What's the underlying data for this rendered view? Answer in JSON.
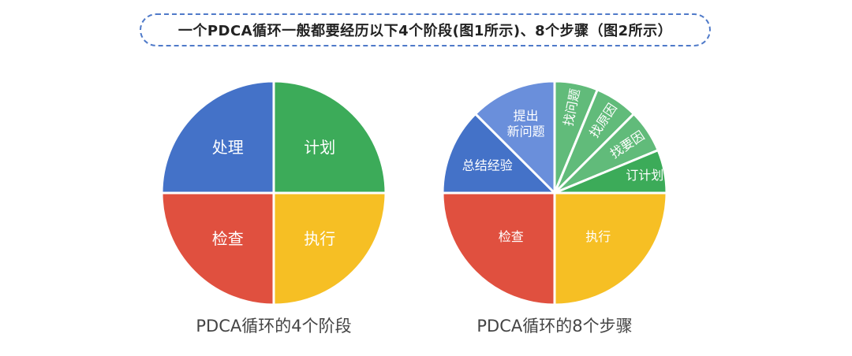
{
  "title": "一个PDCA循环一般都要经历以下4个阶段(图1所示)、8个步骤（图2所示）",
  "colors": {
    "blue": "#4472c8",
    "green": "#3cab59",
    "red": "#e0503f",
    "yellow": "#f6bf24",
    "light_blue": "#6a8fdb",
    "light_green": "#61bb7a"
  },
  "chart_data": [
    {
      "type": "pie",
      "caption": "PDCA循环的4个阶段",
      "slices": [
        {
          "label": "计划",
          "value": 25,
          "color": "#3cab59"
        },
        {
          "label": "执行",
          "value": 25,
          "color": "#f6bf24"
        },
        {
          "label": "检查",
          "value": 25,
          "color": "#e0503f"
        },
        {
          "label": "处理",
          "value": 25,
          "color": "#4472c8"
        }
      ]
    },
    {
      "type": "pie",
      "caption": "PDCA循环的8个步骤",
      "slices": [
        {
          "label": "找问题",
          "value": 6.25,
          "color": "#61bb7a"
        },
        {
          "label": "找原因",
          "value": 6.25,
          "color": "#61bb7a"
        },
        {
          "label": "找要因",
          "value": 6.25,
          "color": "#61bb7a"
        },
        {
          "label": "订计划",
          "value": 6.25,
          "color": "#3cab59"
        },
        {
          "label": "执行",
          "value": 25,
          "color": "#f6bf24"
        },
        {
          "label": "检查",
          "value": 25,
          "color": "#e0503f"
        },
        {
          "label": "总结经验",
          "value": 12.5,
          "color": "#4472c8"
        },
        {
          "label": "提出\n新问题",
          "value": 12.5,
          "color": "#6a8fdb"
        }
      ]
    }
  ]
}
